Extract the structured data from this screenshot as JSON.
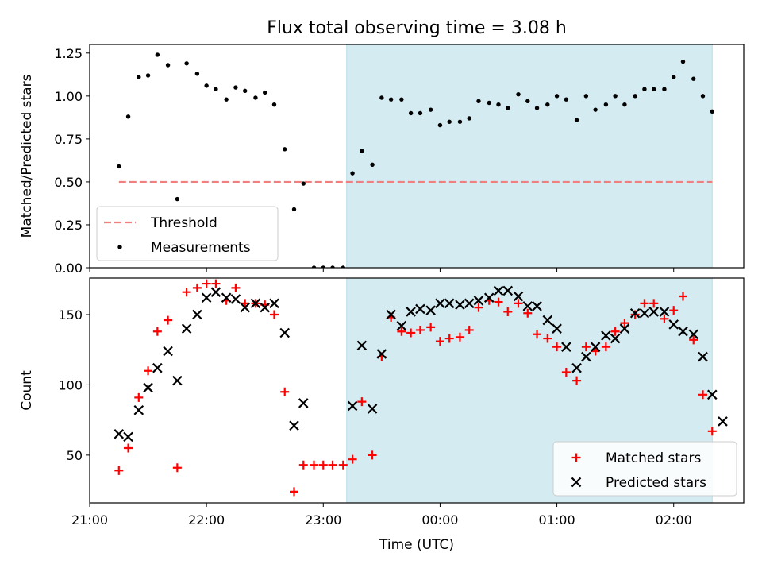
{
  "chart_data": {
    "type": "scatter",
    "title": "Flux total observing time = 3.08 h",
    "xlabel": "Time (UTC)",
    "x_tick_labels": [
      "21:00",
      "22:00",
      "23:00",
      "00:00",
      "01:00",
      "02:00"
    ],
    "x_tick_hours": [
      21,
      22,
      23,
      24,
      25,
      26
    ],
    "x_range_hours": [
      21.0,
      26.6
    ],
    "observing_window_hours": [
      23.2,
      26.33
    ],
    "observing_window_color": "#d4ebf2",
    "panels": [
      {
        "id": "ratio",
        "ylabel": "Matched/Predicted stars",
        "ylim": [
          0.0,
          1.3
        ],
        "yticks": [
          0.0,
          0.25,
          0.5,
          0.75,
          1.0,
          1.25
        ],
        "ytick_labels": [
          "0.00",
          "0.25",
          "0.50",
          "0.75",
          "1.00",
          "1.25"
        ],
        "threshold": {
          "name": "Threshold",
          "value": 0.5,
          "x_start": 21.25,
          "x_end": 26.33,
          "color": "#f08080"
        },
        "legend": {
          "position": "lower left",
          "entries": [
            "Threshold",
            "Measurements"
          ]
        },
        "series": [
          {
            "name": "Measurements",
            "marker": "dot",
            "color": "#000000",
            "points": [
              [
                21.25,
                0.59
              ],
              [
                21.33,
                0.88
              ],
              [
                21.42,
                1.11
              ],
              [
                21.5,
                1.12
              ],
              [
                21.58,
                1.24
              ],
              [
                21.67,
                1.18
              ],
              [
                21.75,
                0.4
              ],
              [
                21.83,
                1.19
              ],
              [
                21.92,
                1.13
              ],
              [
                22.0,
                1.06
              ],
              [
                22.08,
                1.04
              ],
              [
                22.17,
                0.98
              ],
              [
                22.25,
                1.05
              ],
              [
                22.33,
                1.03
              ],
              [
                22.42,
                0.99
              ],
              [
                22.5,
                1.02
              ],
              [
                22.58,
                0.95
              ],
              [
                22.67,
                0.69
              ],
              [
                22.75,
                0.34
              ],
              [
                22.83,
                0.49
              ],
              [
                22.92,
                0.0
              ],
              [
                23.0,
                0.0
              ],
              [
                23.08,
                0.0
              ],
              [
                23.17,
                0.0
              ],
              [
                23.25,
                0.55
              ],
              [
                23.33,
                0.68
              ],
              [
                23.42,
                0.6
              ],
              [
                23.5,
                0.99
              ],
              [
                23.58,
                0.98
              ],
              [
                23.67,
                0.98
              ],
              [
                23.75,
                0.9
              ],
              [
                23.83,
                0.9
              ],
              [
                23.92,
                0.92
              ],
              [
                24.0,
                0.83
              ],
              [
                24.08,
                0.85
              ],
              [
                24.17,
                0.85
              ],
              [
                24.25,
                0.87
              ],
              [
                24.33,
                0.97
              ],
              [
                24.42,
                0.96
              ],
              [
                24.5,
                0.95
              ],
              [
                24.58,
                0.93
              ],
              [
                24.67,
                1.01
              ],
              [
                24.75,
                0.97
              ],
              [
                24.83,
                0.93
              ],
              [
                24.92,
                0.95
              ],
              [
                25.0,
                1.0
              ],
              [
                25.08,
                0.98
              ],
              [
                25.17,
                0.86
              ],
              [
                25.25,
                1.0
              ],
              [
                25.33,
                0.92
              ],
              [
                25.42,
                0.95
              ],
              [
                25.5,
                1.0
              ],
              [
                25.58,
                0.95
              ],
              [
                25.67,
                1.0
              ],
              [
                25.75,
                1.04
              ],
              [
                25.83,
                1.04
              ],
              [
                25.92,
                1.04
              ],
              [
                26.0,
                1.11
              ],
              [
                26.08,
                1.2
              ],
              [
                26.17,
                1.1
              ],
              [
                26.25,
                1.0
              ],
              [
                26.33,
                0.91
              ]
            ]
          }
        ]
      },
      {
        "id": "counts",
        "ylabel": "Count",
        "ylim": [
          16,
          176
        ],
        "yticks": [
          50,
          100,
          150
        ],
        "ytick_labels": [
          "50",
          "100",
          "150"
        ],
        "legend": {
          "position": "lower right",
          "entries": [
            "Matched stars",
            "Predicted stars"
          ]
        },
        "series": [
          {
            "name": "Matched stars",
            "marker": "plus",
            "color": "#ff0000",
            "points": [
              [
                21.25,
                39
              ],
              [
                21.33,
                55
              ],
              [
                21.42,
                91
              ],
              [
                21.5,
                110
              ],
              [
                21.58,
                138
              ],
              [
                21.67,
                146
              ],
              [
                21.75,
                41
              ],
              [
                21.83,
                166
              ],
              [
                21.92,
                169
              ],
              [
                22.0,
                172
              ],
              [
                22.08,
                172
              ],
              [
                22.17,
                160
              ],
              [
                22.25,
                169
              ],
              [
                22.33,
                158
              ],
              [
                22.42,
                158
              ],
              [
                22.5,
                157
              ],
              [
                22.58,
                150
              ],
              [
                22.67,
                95
              ],
              [
                22.75,
                24
              ],
              [
                22.83,
                43
              ],
              [
                22.92,
                43
              ],
              [
                23.0,
                43
              ],
              [
                23.08,
                43
              ],
              [
                23.17,
                43
              ],
              [
                23.25,
                47
              ],
              [
                23.33,
                88
              ],
              [
                23.42,
                50
              ],
              [
                23.5,
                120
              ],
              [
                23.58,
                148
              ],
              [
                23.67,
                138
              ],
              [
                23.75,
                137
              ],
              [
                23.83,
                139
              ],
              [
                23.92,
                141
              ],
              [
                24.0,
                131
              ],
              [
                24.08,
                133
              ],
              [
                24.17,
                134
              ],
              [
                24.25,
                139
              ],
              [
                24.33,
                155
              ],
              [
                24.42,
                160
              ],
              [
                24.5,
                159
              ],
              [
                24.58,
                152
              ],
              [
                24.67,
                158
              ],
              [
                24.75,
                151
              ],
              [
                24.83,
                136
              ],
              [
                24.92,
                133
              ],
              [
                25.0,
                127
              ],
              [
                25.08,
                109
              ],
              [
                25.17,
                103
              ],
              [
                25.25,
                127
              ],
              [
                25.33,
                124
              ],
              [
                25.42,
                127
              ],
              [
                25.5,
                138
              ],
              [
                25.58,
                144
              ],
              [
                25.67,
                150
              ],
              [
                25.75,
                158
              ],
              [
                25.83,
                158
              ],
              [
                25.92,
                147
              ],
              [
                26.0,
                153
              ],
              [
                26.08,
                163
              ],
              [
                26.17,
                132
              ],
              [
                26.25,
                93
              ],
              [
                26.33,
                67
              ]
            ]
          },
          {
            "name": "Predicted stars",
            "marker": "x",
            "color": "#000000",
            "points": [
              [
                21.25,
                65
              ],
              [
                21.33,
                63
              ],
              [
                21.42,
                82
              ],
              [
                21.5,
                98
              ],
              [
                21.58,
                112
              ],
              [
                21.67,
                124
              ],
              [
                21.75,
                103
              ],
              [
                21.83,
                140
              ],
              [
                21.92,
                150
              ],
              [
                22.0,
                162
              ],
              [
                22.08,
                166
              ],
              [
                22.17,
                162
              ],
              [
                22.25,
                161
              ],
              [
                22.33,
                155
              ],
              [
                22.42,
                158
              ],
              [
                22.5,
                155
              ],
              [
                22.58,
                158
              ],
              [
                22.67,
                137
              ],
              [
                22.75,
                71
              ],
              [
                22.83,
                87
              ],
              [
                23.25,
                85
              ],
              [
                23.33,
                128
              ],
              [
                23.42,
                83
              ],
              [
                23.5,
                122
              ],
              [
                23.58,
                150
              ],
              [
                23.67,
                142
              ],
              [
                23.75,
                152
              ],
              [
                23.83,
                154
              ],
              [
                23.92,
                153
              ],
              [
                24.0,
                158
              ],
              [
                24.08,
                158
              ],
              [
                24.17,
                157
              ],
              [
                24.25,
                158
              ],
              [
                24.33,
                160
              ],
              [
                24.42,
                162
              ],
              [
                24.5,
                167
              ],
              [
                24.58,
                167
              ],
              [
                24.67,
                163
              ],
              [
                24.75,
                156
              ],
              [
                24.83,
                156
              ],
              [
                24.92,
                146
              ],
              [
                25.0,
                140
              ],
              [
                25.08,
                127
              ],
              [
                25.17,
                112
              ],
              [
                25.25,
                120
              ],
              [
                25.33,
                127
              ],
              [
                25.42,
                135
              ],
              [
                25.5,
                133
              ],
              [
                25.58,
                140
              ],
              [
                25.67,
                151
              ],
              [
                25.75,
                151
              ],
              [
                25.83,
                152
              ],
              [
                25.92,
                152
              ],
              [
                26.0,
                143
              ],
              [
                26.08,
                138
              ],
              [
                26.17,
                136
              ],
              [
                26.25,
                120
              ],
              [
                26.33,
                93
              ],
              [
                26.42,
                74
              ]
            ]
          }
        ]
      }
    ]
  }
}
